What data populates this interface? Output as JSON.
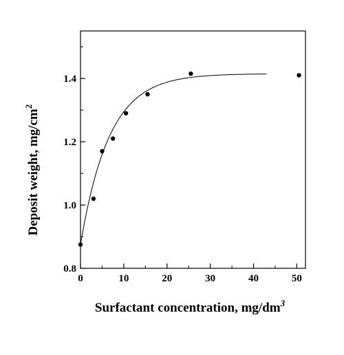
{
  "chart_data": {
    "type": "scatter",
    "title": "",
    "xlabel": "Surfactant concentration, mg/dm",
    "xlabel_sup": "3",
    "ylabel": "Deposit weight, mg/cm",
    "ylabel_sup": "2",
    "xlim": [
      0,
      52
    ],
    "ylim": [
      0.8,
      1.55
    ],
    "x_ticks": [
      0,
      10,
      20,
      30,
      40,
      50
    ],
    "y_ticks": [
      0.8,
      1.0,
      1.2,
      1.4
    ],
    "x_tick_labels": [
      "0",
      "10",
      "20",
      "30",
      "40",
      "50"
    ],
    "y_tick_labels": [
      "0.8",
      "1.0",
      "1.2",
      "1.4"
    ],
    "grid": false,
    "legend": "none",
    "series": [
      {
        "x": [
          0,
          3,
          5,
          7.5,
          10.5,
          15.5,
          25.5,
          50.5
        ],
        "y": [
          0.875,
          1.02,
          1.17,
          1.21,
          1.29,
          1.35,
          1.415,
          1.41
        ]
      }
    ],
    "fit_curve": {
      "type": "exponential_saturation",
      "y0": 0.875,
      "y_max": 1.415,
      "rate": 0.15,
      "x_end": 43
    },
    "colors": {
      "marker": "#000000",
      "line": "#000000",
      "axes": "#000000"
    }
  }
}
